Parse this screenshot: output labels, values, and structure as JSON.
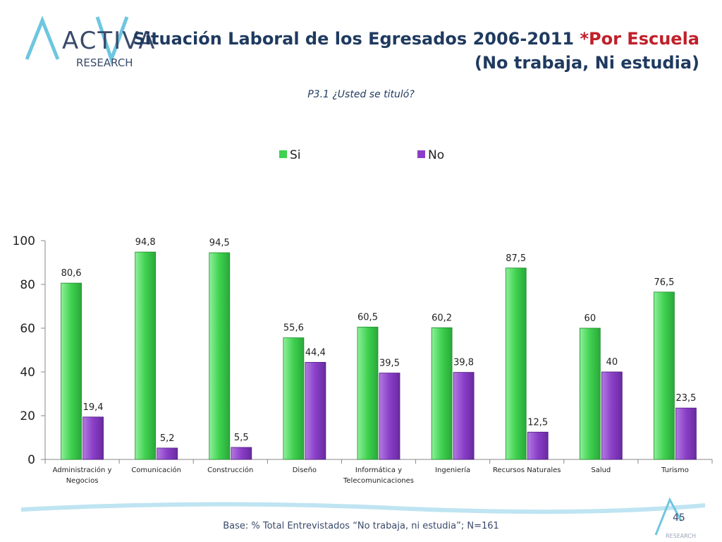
{
  "header": {
    "logo_text_main": "ACTIVA",
    "logo_text_sub": "RESEARCH",
    "title_line1_main": "Situación Laboral de los Egresados 2006-2011 ",
    "title_line1_accent": "*Por Escuela",
    "title_line2": "(No trabaja, Ni estudia)"
  },
  "colors": {
    "si": "#3fd14f",
    "no": "#8a3fc8",
    "title": "#1f3a5f",
    "accent": "#c0202a"
  },
  "chart_data": {
    "type": "bar",
    "title": "P3.1 ¿Usted se tituló?",
    "categories": [
      [
        "Administración y",
        "Negocios"
      ],
      [
        "Comunicación"
      ],
      [
        "Construcción"
      ],
      [
        "Diseño"
      ],
      [
        "Informática y",
        "Telecomunicaciones"
      ],
      [
        "Ingeniería"
      ],
      [
        "Recursos Naturales"
      ],
      [
        "Salud"
      ],
      [
        "Turismo"
      ]
    ],
    "series": [
      {
        "name": "Si",
        "values": [
          80.6,
          94.8,
          94.5,
          55.6,
          60.5,
          60.2,
          87.5,
          60,
          76.5
        ],
        "labels": [
          "80,6",
          "94,8",
          "94,5",
          "55,6",
          "60,5",
          "60,2",
          "87,5",
          "60",
          "76,5"
        ]
      },
      {
        "name": "No",
        "values": [
          19.4,
          5.2,
          5.5,
          44.4,
          39.5,
          39.8,
          12.5,
          40,
          23.5
        ],
        "labels": [
          "19,4",
          "5,2",
          "5,5",
          "44,4",
          "39,5",
          "39,8",
          "12,5",
          "40",
          "23,5"
        ]
      }
    ],
    "yticks": [
      0,
      20,
      40,
      60,
      80,
      100
    ],
    "ylim": [
      0,
      100
    ],
    "legend_position": "top"
  },
  "footer": {
    "base": "Base: % Total Entrevistados “No trabaja, ni estudia”; N=161",
    "page": "45",
    "mini_logo_text": "RESEARCH"
  }
}
